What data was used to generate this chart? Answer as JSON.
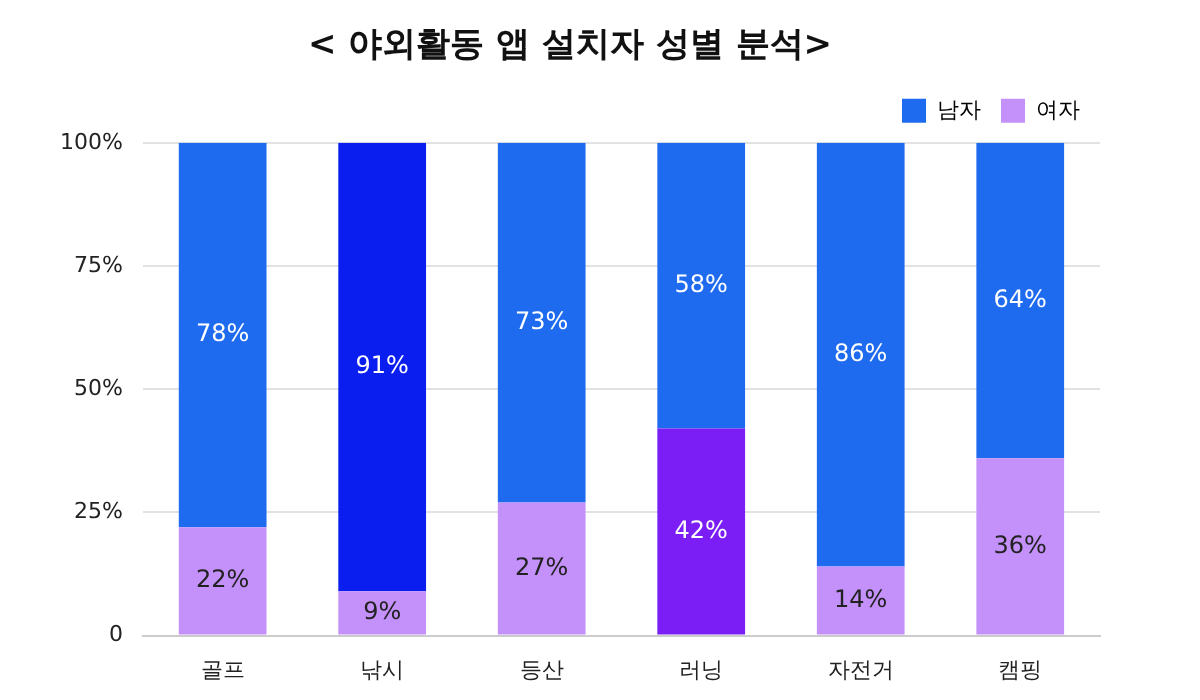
{
  "chart_data": {
    "type": "bar",
    "title": "< 야외활동 앱 설치자 성별 분석>",
    "categories": [
      "골프",
      "낚시",
      "등산",
      "러닝",
      "자전거",
      "캠핑"
    ],
    "stacked": true,
    "series": [
      {
        "name": "여자",
        "color": "#c490fa",
        "colors": [
          "#c490fa",
          "#c490fa",
          "#c490fa",
          "#7a1ef5",
          "#c490fa",
          "#c490fa"
        ],
        "values": [
          22,
          9,
          27,
          42,
          14,
          36
        ],
        "value_labels": [
          "22%",
          "9%",
          "27%",
          "42%",
          "14%",
          "36%"
        ]
      },
      {
        "name": "남자",
        "color": "#1f6bef",
        "colors": [
          "#1f6bef",
          "#0a1ef0",
          "#1f6bef",
          "#1f6bef",
          "#1f6bef",
          "#1f6bef"
        ],
        "values": [
          78,
          91,
          73,
          58,
          86,
          64
        ],
        "value_labels": [
          "78%",
          "91%",
          "73%",
          "58%",
          "86%",
          "64%"
        ]
      }
    ],
    "ylim": [
      0,
      100
    ],
    "yticks": [
      {
        "value": 0,
        "label": "0"
      },
      {
        "value": 25,
        "label": "25%"
      },
      {
        "value": 50,
        "label": "50%"
      },
      {
        "value": 75,
        "label": "75%"
      },
      {
        "value": 100,
        "label": "100%"
      }
    ],
    "grid": "y",
    "legend": "top right"
  }
}
